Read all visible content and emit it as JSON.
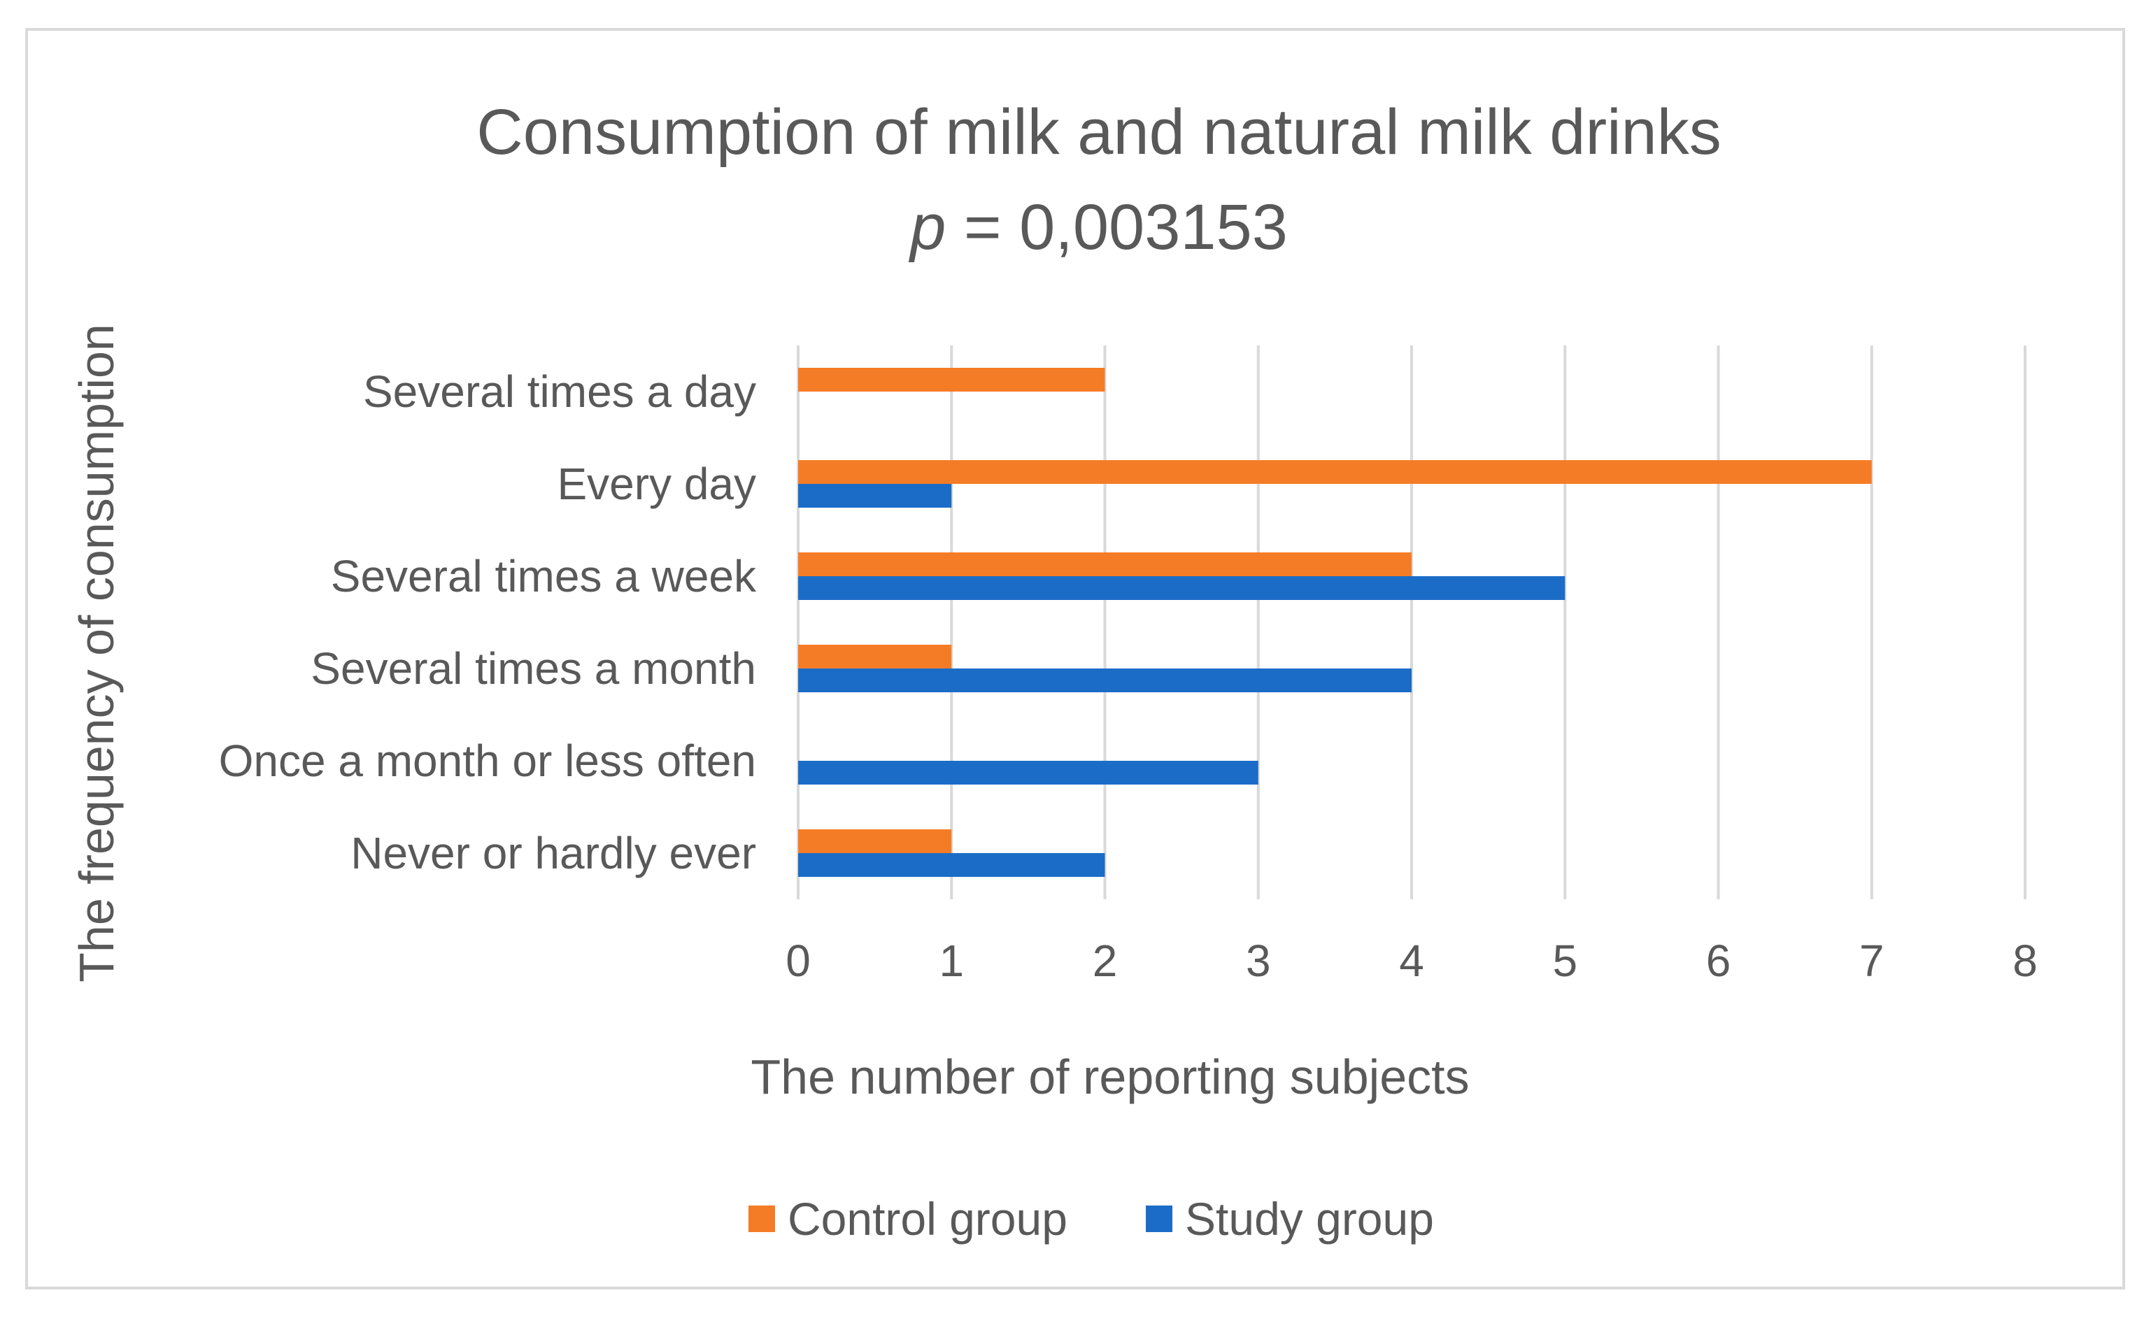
{
  "chart_data": {
    "type": "bar",
    "orientation": "horizontal",
    "title": "Consumption of milk and natural milk drinks",
    "subtitle_italic": "p",
    "subtitle_rest": " = 0,003153",
    "xlabel": "The number of reporting subjects",
    "ylabel": "The frequency of consumption",
    "xlim": [
      0,
      8
    ],
    "xticks": [
      "0",
      "1",
      "2",
      "3",
      "4",
      "5",
      "6",
      "7",
      "8"
    ],
    "grid": true,
    "legend_position": "bottom",
    "categories": [
      "Several times a day",
      "Every day",
      "Several times a week",
      "Several times a month",
      "Once a month or less often",
      "Never or hardly ever"
    ],
    "series": [
      {
        "name": "Control group",
        "color": "#F57C26",
        "values": [
          2,
          7,
          4,
          1,
          0,
          1
        ]
      },
      {
        "name": "Study group",
        "color": "#1B6CC7",
        "values": [
          0,
          1,
          5,
          4,
          3,
          2
        ]
      }
    ]
  }
}
